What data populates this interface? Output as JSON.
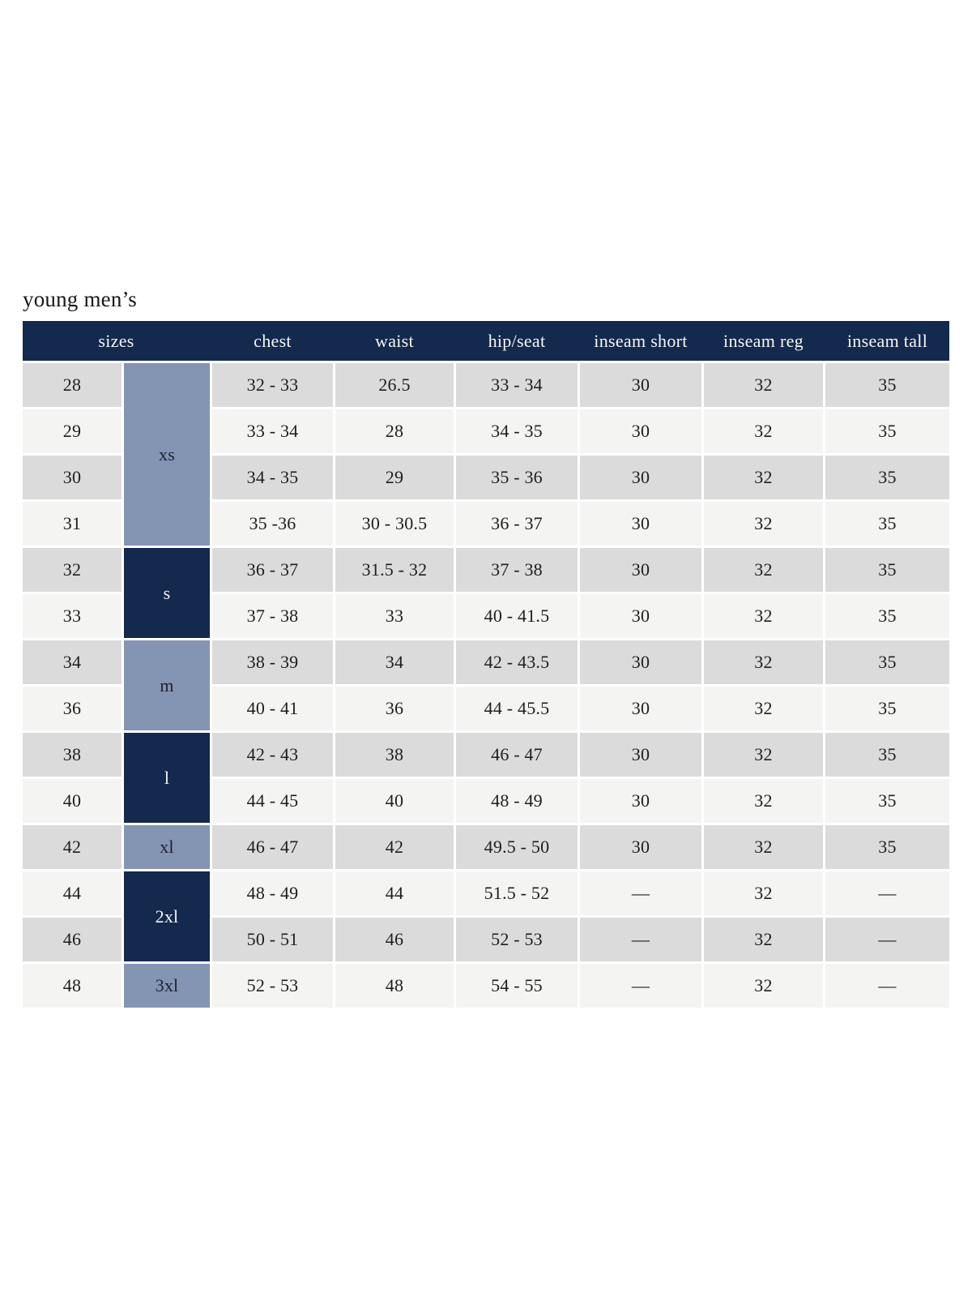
{
  "page": {
    "title": "young men’s"
  },
  "colors": {
    "navy": "#13294e",
    "slate": "#8494b3",
    "rowGray": "#dbdbdb",
    "rowLight": "#f4f4f3",
    "headerText": "#f7f6f3",
    "cellText": "#1e1e1e",
    "titleText": "#17171d",
    "groupDarkText": "#1b2233"
  },
  "table": {
    "headers": [
      "sizes",
      "chest",
      "waist",
      "hip/seat",
      "inseam short",
      "inseam reg",
      "inseam tall"
    ],
    "size_groups": [
      {
        "label": "xs",
        "rows": 4,
        "style": "slate"
      },
      {
        "label": "s",
        "rows": 2,
        "style": "navy"
      },
      {
        "label": "m",
        "rows": 2,
        "style": "slate"
      },
      {
        "label": "l",
        "rows": 2,
        "style": "navy"
      },
      {
        "label": "xl",
        "rows": 1,
        "style": "slate"
      },
      {
        "label": "2xl",
        "rows": 2,
        "style": "navy"
      },
      {
        "label": "3xl",
        "rows": 1,
        "style": "slate"
      }
    ],
    "rows": [
      {
        "size": "28",
        "chest": "32 - 33",
        "waist": "26.5",
        "hip_seat": "33 - 34",
        "inseam_short": "30",
        "inseam_reg": "32",
        "inseam_tall": "35"
      },
      {
        "size": "29",
        "chest": "33 - 34",
        "waist": "28",
        "hip_seat": "34 - 35",
        "inseam_short": "30",
        "inseam_reg": "32",
        "inseam_tall": "35"
      },
      {
        "size": "30",
        "chest": "34 - 35",
        "waist": "29",
        "hip_seat": "35 - 36",
        "inseam_short": "30",
        "inseam_reg": "32",
        "inseam_tall": "35"
      },
      {
        "size": "31",
        "chest": "35 -36",
        "waist": "30 - 30.5",
        "hip_seat": "36 - 37",
        "inseam_short": "30",
        "inseam_reg": "32",
        "inseam_tall": "35"
      },
      {
        "size": "32",
        "chest": "36 - 37",
        "waist": "31.5 - 32",
        "hip_seat": "37 - 38",
        "inseam_short": "30",
        "inseam_reg": "32",
        "inseam_tall": "35"
      },
      {
        "size": "33",
        "chest": "37 - 38",
        "waist": "33",
        "hip_seat": "40 - 41.5",
        "inseam_short": "30",
        "inseam_reg": "32",
        "inseam_tall": "35"
      },
      {
        "size": "34",
        "chest": "38 - 39",
        "waist": "34",
        "hip_seat": "42 - 43.5",
        "inseam_short": "30",
        "inseam_reg": "32",
        "inseam_tall": "35"
      },
      {
        "size": "36",
        "chest": "40 - 41",
        "waist": "36",
        "hip_seat": "44 - 45.5",
        "inseam_short": "30",
        "inseam_reg": "32",
        "inseam_tall": "35"
      },
      {
        "size": "38",
        "chest": "42 - 43",
        "waist": "38",
        "hip_seat": "46 - 47",
        "inseam_short": "30",
        "inseam_reg": "32",
        "inseam_tall": "35"
      },
      {
        "size": "40",
        "chest": "44 - 45",
        "waist": "40",
        "hip_seat": "48 - 49",
        "inseam_short": "30",
        "inseam_reg": "32",
        "inseam_tall": "35"
      },
      {
        "size": "42",
        "chest": "46 - 47",
        "waist": "42",
        "hip_seat": "49.5 - 50",
        "inseam_short": "30",
        "inseam_reg": "32",
        "inseam_tall": "35"
      },
      {
        "size": "44",
        "chest": "48 - 49",
        "waist": "44",
        "hip_seat": "51.5 - 52",
        "inseam_short": "—",
        "inseam_reg": "32",
        "inseam_tall": "—"
      },
      {
        "size": "46",
        "chest": "50 - 51",
        "waist": "46",
        "hip_seat": "52 - 53",
        "inseam_short": "—",
        "inseam_reg": "32",
        "inseam_tall": "—"
      },
      {
        "size": "48",
        "chest": "52 - 53",
        "waist": "48",
        "hip_seat": "54 - 55",
        "inseam_short": "—",
        "inseam_reg": "32",
        "inseam_tall": "—"
      }
    ]
  }
}
